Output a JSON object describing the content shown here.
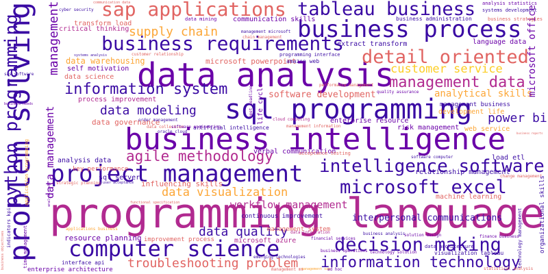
{
  "palette": {
    "deep_purple": "#3a0aa3",
    "purple": "#6a00a8",
    "magenta": "#b12a90",
    "pink": "#cc4778",
    "salmon": "#e16462",
    "orange": "#f2844b",
    "gold": "#fca636",
    "yellow": "#fcce25"
  },
  "words": [
    {
      "text": "programming language",
      "color": "#b12a90"
    },
    {
      "text": "data analysis",
      "color": "#6a00a8"
    },
    {
      "text": "business intelligence",
      "color": "#6a00a8"
    },
    {
      "text": "problem solving",
      "color": "#3a0aa3"
    },
    {
      "text": "sql programming",
      "color": "#3a0aa3"
    },
    {
      "text": "business process",
      "color": "#3a0aa3"
    },
    {
      "text": "project management",
      "color": "#3a0aa3"
    },
    {
      "text": "computer science",
      "color": "#3a0aa3"
    },
    {
      "text": "tableau business",
      "color": "#3a0aa3"
    },
    {
      "text": "sap applications",
      "color": "#e16462"
    },
    {
      "text": "business requirements",
      "color": "#3a0aa3"
    },
    {
      "text": "intelligence software",
      "color": "#3a0aa3"
    },
    {
      "text": "microsoft excel",
      "color": "#3a0aa3"
    },
    {
      "text": "decision making",
      "color": "#3a0aa3"
    },
    {
      "text": "information technology",
      "color": "#3a0aa3"
    },
    {
      "text": "python programming",
      "color": "#3a0aa3"
    },
    {
      "text": "detail oriented",
      "color": "#e16462"
    },
    {
      "text": "management data",
      "color": "#b12a90"
    },
    {
      "text": "information system",
      "color": "#3a0aa3"
    },
    {
      "text": "agile methodology",
      "color": "#b12a90"
    },
    {
      "text": "troubleshooting problem",
      "color": "#e16462"
    },
    {
      "text": "data visualization",
      "color": "#fca636"
    },
    {
      "text": "data modeling",
      "color": "#3a0aa3"
    },
    {
      "text": "power bi",
      "color": "#3a0aa3"
    },
    {
      "text": "supply chain",
      "color": "#fca636"
    },
    {
      "text": "customer service",
      "color": "#fcce25"
    },
    {
      "text": "data quality",
      "color": "#3a0aa3"
    },
    {
      "text": "workflow management",
      "color": "#b12a90"
    },
    {
      "text": "management",
      "color": "#6a00a8"
    },
    {
      "text": "data warehousing",
      "color": "#fca636"
    },
    {
      "text": "analytical skills",
      "color": "#fca636"
    },
    {
      "text": "software development",
      "color": "#e16462"
    },
    {
      "text": "microsoft office",
      "color": "#6a00a8"
    },
    {
      "text": "data management",
      "color": "#6a00a8"
    },
    {
      "text": "interpersonal communications",
      "color": "#3a0aa3"
    },
    {
      "text": "communication skills",
      "color": "#6a00a8"
    },
    {
      "text": "transform load",
      "color": "#e16462"
    },
    {
      "text": "critical thinking",
      "color": "#b12a90"
    },
    {
      "text": "microsoft powerpoint",
      "color": "#e16462"
    },
    {
      "text": "self motivation",
      "color": "#6a00a8"
    },
    {
      "text": "data science",
      "color": "#e16462"
    },
    {
      "text": "process improvement",
      "color": "#b12a90"
    },
    {
      "text": "data governance",
      "color": "#e16462"
    },
    {
      "text": "analysis data",
      "color": "#3a0aa3"
    },
    {
      "text": "sql server",
      "color": "#3a0aa3"
    },
    {
      "text": "influencing skills",
      "color": "#e16462"
    },
    {
      "text": "verbal communication",
      "color": "#6a00a8"
    },
    {
      "text": "enterprise resource",
      "color": "#6a00a8"
    },
    {
      "text": "risk management",
      "color": "#6a00a8"
    },
    {
      "text": "relationship management",
      "color": "#3a0aa3"
    },
    {
      "text": "machine learning",
      "color": "#e16462"
    },
    {
      "text": "load etl",
      "color": "#3a0aa3"
    },
    {
      "text": "web service",
      "color": "#fca636"
    },
    {
      "text": "development life",
      "color": "#fca636"
    },
    {
      "text": "management business",
      "color": "#3a0aa3"
    },
    {
      "text": "extract transform",
      "color": "#3a0aa3"
    },
    {
      "text": "language data",
      "color": "#6a00a8"
    },
    {
      "text": "resource planning",
      "color": "#6a00a8"
    },
    {
      "text": "improvement process",
      "color": "#e16462"
    },
    {
      "text": "microsoft azure",
      "color": "#b12a90"
    },
    {
      "text": "management system",
      "color": "#e16462"
    },
    {
      "text": "key performance",
      "color": "#e16462"
    },
    {
      "text": "continuous improvement",
      "color": "#3a0aa3"
    },
    {
      "text": "artificial intelligence",
      "color": "#3a0aa3"
    },
    {
      "text": "enterprise architecture",
      "color": "#6a00a8"
    },
    {
      "text": "interface api",
      "color": "#3a0aa3"
    },
    {
      "text": "visualization tableau",
      "color": "#3a0aa3"
    },
    {
      "text": "amazon web",
      "color": "#3a0aa3"
    },
    {
      "text": "cloud computing",
      "color": "#b12a90"
    },
    {
      "text": "business administration",
      "color": "#3a0aa3"
    },
    {
      "text": "systems development",
      "color": "#3a0aa3"
    },
    {
      "text": "analysis statistics",
      "color": "#6a00a8"
    },
    {
      "text": "business strategies",
      "color": "#e16462"
    },
    {
      "text": "cyber security",
      "color": "#3a0aa3"
    },
    {
      "text": "data mining",
      "color": "#6a00a8"
    },
    {
      "text": "oracle cloud",
      "color": "#3a0aa3"
    },
    {
      "text": "management microsoft",
      "color": "#3a0aa3"
    },
    {
      "text": "programming interface",
      "color": "#3a0aa3"
    },
    {
      "text": "customer relationship",
      "color": "#e16462"
    },
    {
      "text": "software computer",
      "color": "#3a0aa3"
    },
    {
      "text": "acceptance testing",
      "color": "#e16462"
    },
    {
      "text": "performance management",
      "color": "#e16462"
    },
    {
      "text": "quality assurance",
      "color": "#6a00a8"
    },
    {
      "text": "business analysis",
      "color": "#3a0aa3"
    },
    {
      "text": "data integration",
      "color": "#b12a90"
    },
    {
      "text": "data architecture",
      "color": "#3a0aa3"
    },
    {
      "text": "financial services",
      "color": "#6a00a8"
    },
    {
      "text": "business operations",
      "color": "#6a00a8"
    },
    {
      "text": "solution design",
      "color": "#6a00a8"
    },
    {
      "text": "finance business",
      "color": "#6a00a8"
    },
    {
      "text": "technology solution",
      "color": "#6a00a8"
    },
    {
      "text": "statistical analysis",
      "color": "#e16462"
    },
    {
      "text": "change management",
      "color": "#e16462"
    },
    {
      "text": "business reports",
      "color": "#e16462"
    },
    {
      "text": "user acceptance",
      "color": "#3a0aa3"
    },
    {
      "text": "strategic planning",
      "color": "#e16462"
    },
    {
      "text": "functional specification",
      "color": "#e16462"
    },
    {
      "text": "data collection",
      "color": "#e16462"
    },
    {
      "text": "order management",
      "color": "#3a0aa3"
    },
    {
      "text": "management information",
      "color": "#e16462"
    },
    {
      "text": "life cycle",
      "color": "#6a00a8"
    },
    {
      "text": "meet deadlines",
      "color": "#6a00a8"
    },
    {
      "text": "chain management",
      "color": "#e16462"
    },
    {
      "text": "emerging technologies",
      "color": "#3a0aa3"
    },
    {
      "text": "applications business",
      "color": "#fca636"
    },
    {
      "text": "management sap",
      "color": "#fca636"
    },
    {
      "text": "indicators kpis",
      "color": "#3a0aa3"
    },
    {
      "text": "business objectives",
      "color": "#e16462"
    },
    {
      "text": "organizational skills",
      "color": "#3a0aa3"
    },
    {
      "text": "technology management",
      "color": "#3a0aa3"
    },
    {
      "text": "application programming",
      "color": "#fca636"
    },
    {
      "text": "sas software",
      "color": "#3a0aa3"
    },
    {
      "text": "business needs",
      "color": "#6a00a8"
    },
    {
      "text": "systems analysis",
      "color": "#3a0aa3"
    },
    {
      "text": "analysis sql",
      "color": "#6a00a8"
    },
    {
      "text": "software engineering",
      "color": "#6a00a8"
    },
    {
      "text": "time management",
      "color": "#6a00a8"
    },
    {
      "text": "ad hoc",
      "color": "#6a00a8"
    },
    {
      "text": "management ms",
      "color": "#e16462"
    },
    {
      "text": "communication data",
      "color": "#e16462"
    }
  ]
}
